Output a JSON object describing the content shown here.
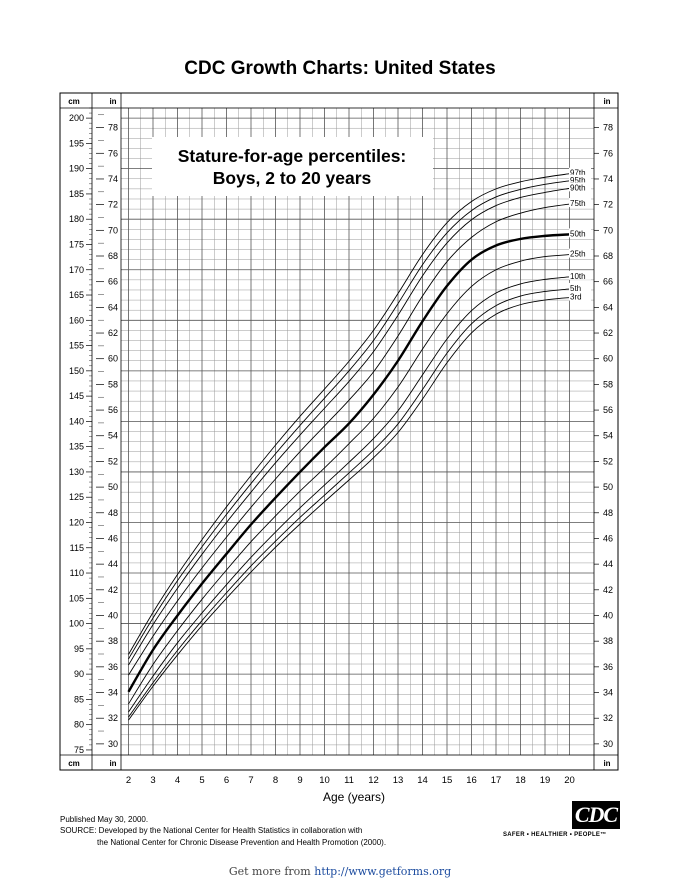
{
  "page": {
    "title": "CDC Growth Charts: United States",
    "published": "Published May 30, 2000.",
    "source_line1": "SOURCE: Developed by the National Center for Health Statistics in collaboration with",
    "source_line2": "the National Center for Chronic Disease Prevention and Health Promotion (2000).",
    "logo_text": "CDC",
    "tagline": "SAFER • HEALTHIER • PEOPLE™",
    "getmore_prefix": "Get more from ",
    "getmore_url": "http://www.getforms.org"
  },
  "chart_data": {
    "type": "line",
    "title_line1": "Stature-for-age percentiles:",
    "title_line2": "Boys, 2 to 20 years",
    "xlabel": "Age (years)",
    "x_ticks": [
      2,
      3,
      4,
      5,
      6,
      7,
      8,
      9,
      10,
      11,
      12,
      13,
      14,
      15,
      16,
      17,
      18,
      19,
      20
    ],
    "xlim": [
      1.0,
      21.0
    ],
    "left_unit_top": "cm",
    "left_unit_bottom": "cm",
    "inner_unit": "in",
    "right_unit": "in",
    "ylim_cm": [
      74,
      202
    ],
    "cm_ticks": [
      75,
      80,
      85,
      90,
      95,
      100,
      105,
      110,
      115,
      120,
      125,
      130,
      135,
      140,
      145,
      150,
      155,
      160,
      165,
      170,
      175,
      180,
      185,
      190,
      195,
      200
    ],
    "in_ticks": [
      30,
      32,
      34,
      36,
      38,
      40,
      42,
      44,
      46,
      48,
      50,
      52,
      54,
      56,
      58,
      60,
      62,
      64,
      66,
      68,
      70,
      72,
      74,
      76,
      78
    ],
    "grid": true,
    "x": [
      2,
      3,
      4,
      5,
      6,
      7,
      8,
      9,
      10,
      11,
      12,
      13,
      14,
      15,
      16,
      17,
      18,
      19,
      20
    ],
    "series": [
      {
        "name": "97th",
        "bold": false,
        "values": [
          93.9,
          102.2,
          109.7,
          116.6,
          123.1,
          129.3,
          135.3,
          141.0,
          146.4,
          151.9,
          158.0,
          165.3,
          173.0,
          179.3,
          183.5,
          186.0,
          187.4,
          188.3,
          189.0
        ]
      },
      {
        "name": "95th",
        "bold": false,
        "values": [
          93.0,
          101.1,
          108.5,
          115.2,
          121.6,
          127.7,
          133.6,
          139.2,
          144.6,
          150.0,
          156.0,
          163.3,
          171.0,
          177.3,
          181.7,
          184.4,
          185.9,
          186.9,
          187.6
        ]
      },
      {
        "name": "90th",
        "bold": false,
        "values": [
          91.8,
          99.8,
          107.0,
          113.7,
          120.0,
          126.0,
          131.8,
          137.3,
          142.6,
          147.9,
          153.8,
          161.0,
          168.8,
          175.3,
          179.9,
          182.7,
          184.3,
          185.3,
          186.1
        ]
      },
      {
        "name": "75th",
        "bold": false,
        "values": [
          89.8,
          97.5,
          104.5,
          111.0,
          117.1,
          123.0,
          128.6,
          134.0,
          139.1,
          144.2,
          149.8,
          156.9,
          164.8,
          171.6,
          176.4,
          179.5,
          181.2,
          182.3,
          183.0
        ]
      },
      {
        "name": "50th",
        "bold": true,
        "values": [
          86.5,
          94.8,
          101.6,
          107.9,
          113.8,
          119.6,
          124.9,
          130.0,
          134.9,
          139.6,
          145.3,
          152.0,
          159.8,
          166.8,
          172.0,
          174.8,
          176.1,
          176.7,
          177.0
        ]
      },
      {
        "name": "25th",
        "bold": false,
        "values": [
          84.1,
          91.9,
          98.6,
          104.8,
          110.6,
          116.2,
          121.3,
          126.2,
          130.8,
          135.6,
          140.6,
          146.8,
          154.3,
          161.3,
          166.7,
          170.0,
          171.7,
          172.6,
          173.0
        ]
      },
      {
        "name": "10th",
        "bold": false,
        "values": [
          82.5,
          89.6,
          96.2,
          102.1,
          107.7,
          113.1,
          118.1,
          122.9,
          127.4,
          131.9,
          136.6,
          142.1,
          149.2,
          156.3,
          161.9,
          165.4,
          167.2,
          168.1,
          168.6
        ]
      },
      {
        "name": "5th",
        "bold": false,
        "values": [
          81.5,
          88.3,
          94.7,
          100.6,
          106.1,
          111.4,
          116.3,
          121.0,
          125.4,
          129.8,
          134.3,
          139.5,
          146.3,
          153.5,
          159.3,
          162.9,
          164.8,
          165.7,
          166.2
        ]
      },
      {
        "name": "3rd",
        "bold": false,
        "values": [
          80.9,
          87.6,
          93.8,
          99.6,
          105.0,
          110.2,
          115.1,
          119.7,
          124.1,
          128.4,
          132.8,
          137.8,
          144.4,
          151.6,
          157.5,
          161.2,
          163.1,
          164.0,
          164.5
        ]
      }
    ]
  }
}
